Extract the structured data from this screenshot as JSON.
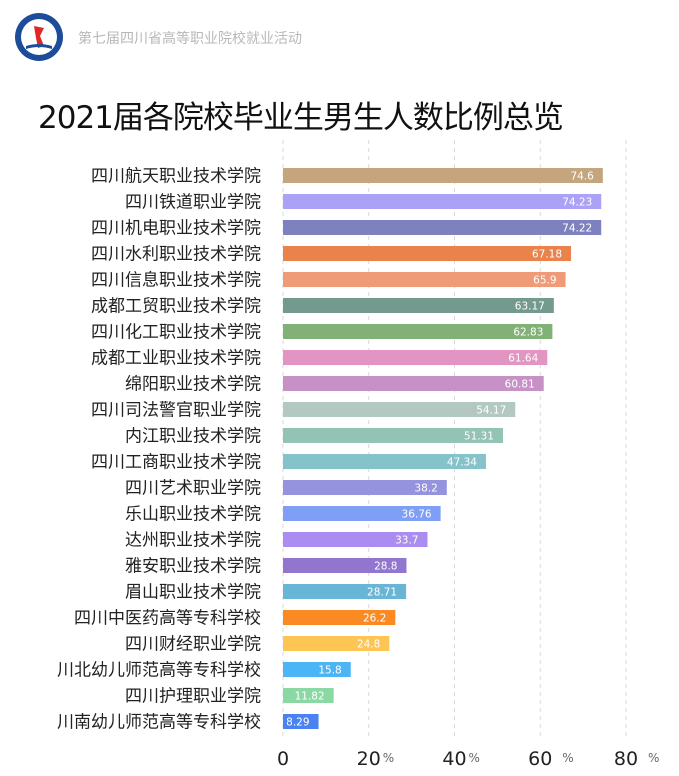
{
  "header": {
    "subtitle": "第七届四川省高等职业院校就业活动"
  },
  "chart_data": {
    "type": "bar",
    "orientation": "horizontal",
    "title": "2021届各院校毕业生男生人数比例总览",
    "categories": [
      "四川航天职业技术学院",
      "四川铁道职业学院",
      "四川机电职业技术学院",
      "四川水利职业技术学院",
      "四川信息职业技术学院",
      "成都工贸职业技术学院",
      "四川化工职业技术学院",
      "成都工业职业技术学院",
      "绵阳职业技术学院",
      "四川司法警官职业学院",
      "内江职业技术学院",
      "四川工商职业技术学院",
      "四川艺术职业学院",
      "乐山职业技术学院",
      "达州职业技术学院",
      "雅安职业技术学院",
      "眉山职业技术学院",
      "四川中医药高等专科学校",
      "四川财经职业学院",
      "川北幼儿师范高等专科学校",
      "四川护理职业学院",
      "川南幼儿师范高等专科学校"
    ],
    "values": [
      74.6,
      74.23,
      74.22,
      67.18,
      65.9,
      63.17,
      62.83,
      61.64,
      60.81,
      54.17,
      51.31,
      47.34,
      38.2,
      36.76,
      33.7,
      28.8,
      28.71,
      26.2,
      24.8,
      15.8,
      11.82,
      8.29
    ],
    "value_labels": [
      "74.6",
      "74.23",
      "74.22",
      "67.18",
      "65.9",
      "63.17",
      "62.83",
      "61.64",
      "60.81",
      "54.17",
      "51.31",
      "47.34",
      "38.2",
      "36.76",
      "33.7",
      "28.8",
      "28.71",
      "26.2",
      "24.8",
      "15.8",
      "11.82",
      "8.29"
    ],
    "colors": [
      "#c4a57e",
      "#aba2f7",
      "#7d82be",
      "#e9834b",
      "#ef9b78",
      "#749a8f",
      "#82b177",
      "#e294c2",
      "#c692c6",
      "#b3c8c1",
      "#93c3b4",
      "#84c3ca",
      "#9592de",
      "#7f9ef6",
      "#ab8cf1",
      "#9275ce",
      "#69b5d5",
      "#fc8a22",
      "#fdc553",
      "#4cb5f5",
      "#8ad9a4",
      "#4a82f2"
    ],
    "xlim": [
      0,
      80
    ],
    "xticks": [
      "0",
      "20",
      "40",
      "60",
      "80"
    ],
    "xtick_unit": "%",
    "grid": true
  }
}
